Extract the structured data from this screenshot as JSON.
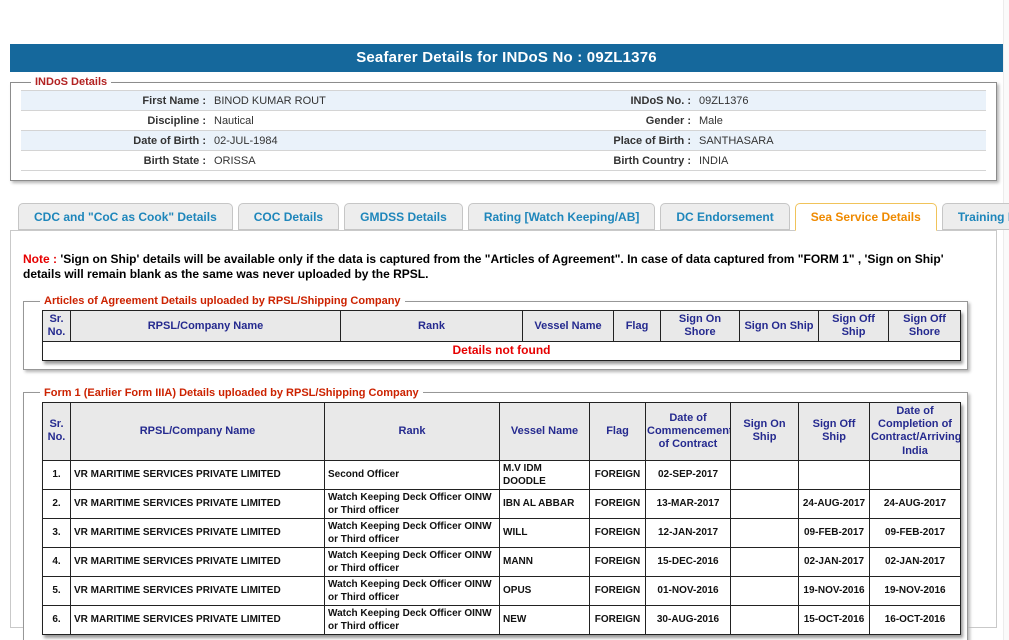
{
  "page": {
    "title": "Seafarer Details for INDoS No : 09ZL1376"
  },
  "colors": {
    "header_bar_blue": "#15689c",
    "tab_text_blue": "#1e86bb",
    "active_tab_orange": "#ef8a00",
    "active_tab_border": "#f0c35a",
    "legend_maroon": "#b22222",
    "legend_red": "#cc2200",
    "table_header_navy": "#252a8f",
    "error_red": "#e60000",
    "stripe_blue": "#eaf2fa"
  },
  "indos_details": {
    "legend": "INDoS Details",
    "rows": [
      {
        "left_label": "First Name :",
        "left_value": "BINOD KUMAR ROUT",
        "right_label": "INDoS No. :",
        "right_value": "09ZL1376"
      },
      {
        "left_label": "Discipline :",
        "left_value": "Nautical",
        "right_label": "Gender :",
        "right_value": "Male"
      },
      {
        "left_label": "Date of Birth :",
        "left_value": "02-JUL-1984",
        "right_label": "Place of Birth :",
        "right_value": "SANTHASARA"
      },
      {
        "left_label": "Birth State :",
        "left_value": "ORISSA",
        "right_label": "Birth Country :",
        "right_value": "INDIA"
      }
    ]
  },
  "tabs": [
    {
      "label": "CDC and \"CoC as Cook\" Details",
      "active": false
    },
    {
      "label": "COC Details",
      "active": false
    },
    {
      "label": "GMDSS Details",
      "active": false
    },
    {
      "label": "Rating [Watch Keeping/AB]",
      "active": false
    },
    {
      "label": "DC Endorsement",
      "active": false
    },
    {
      "label": "Sea Service Details",
      "active": true
    },
    {
      "label": "Training Details",
      "active": false
    }
  ],
  "note": {
    "prefix": "Note :",
    "text": " 'Sign on Ship' details will be available only if the data is captured from the \"Articles of Agreement\". In case of data captured from \"FORM 1\" , 'Sign on Ship' details will remain blank as the same was never uploaded by the RPSL."
  },
  "articles_table": {
    "legend": "Articles of Agreement Details uploaded by RPSL/Shipping Company",
    "headers": [
      "Sr. No.",
      "RPSL/Company Name",
      "Rank",
      "Vessel Name",
      "Flag",
      "Sign On Shore",
      "Sign On Ship",
      "Sign Off Ship",
      "Sign Off Shore"
    ],
    "empty_message": "Details not found"
  },
  "form1_table": {
    "legend": "Form 1 (Earlier Form IIIA) Details uploaded by RPSL/Shipping Company",
    "headers": [
      "Sr. No.",
      "RPSL/Company Name",
      "Rank",
      "Vessel Name",
      "Flag",
      "Date of Commencement of Contract",
      "Sign On Ship",
      "Sign Off Ship",
      "Date of Completion of Contract/Arriving India"
    ],
    "rows": [
      [
        "1.",
        "VR MARITIME SERVICES PRIVATE LIMITED",
        "Second Officer",
        "M.V IDM DOODLE",
        "FOREIGN",
        "02-SEP-2017",
        "",
        "",
        ""
      ],
      [
        "2.",
        "VR MARITIME SERVICES PRIVATE LIMITED",
        "Watch Keeping Deck Officer OINW or Third officer",
        "IBN AL ABBAR",
        "FOREIGN",
        "13-MAR-2017",
        "",
        "24-AUG-2017",
        "24-AUG-2017"
      ],
      [
        "3.",
        "VR MARITIME SERVICES PRIVATE LIMITED",
        "Watch Keeping Deck Officer OINW or Third officer",
        "WILL",
        "FOREIGN",
        "12-JAN-2017",
        "",
        "09-FEB-2017",
        "09-FEB-2017"
      ],
      [
        "4.",
        "VR MARITIME SERVICES PRIVATE LIMITED",
        "Watch Keeping Deck Officer OINW or Third officer",
        "MANN",
        "FOREIGN",
        "15-DEC-2016",
        "",
        "02-JAN-2017",
        "02-JAN-2017"
      ],
      [
        "5.",
        "VR MARITIME SERVICES PRIVATE LIMITED",
        "Watch Keeping Deck Officer OINW or Third officer",
        "OPUS",
        "FOREIGN",
        "01-NOV-2016",
        "",
        "19-NOV-2016",
        "19-NOV-2016"
      ],
      [
        "6.",
        "VR MARITIME SERVICES PRIVATE LIMITED",
        "Watch Keeping Deck Officer OINW or Third officer",
        "NEW",
        "FOREIGN",
        "30-AUG-2016",
        "",
        "15-OCT-2016",
        "16-OCT-2016"
      ]
    ]
  }
}
